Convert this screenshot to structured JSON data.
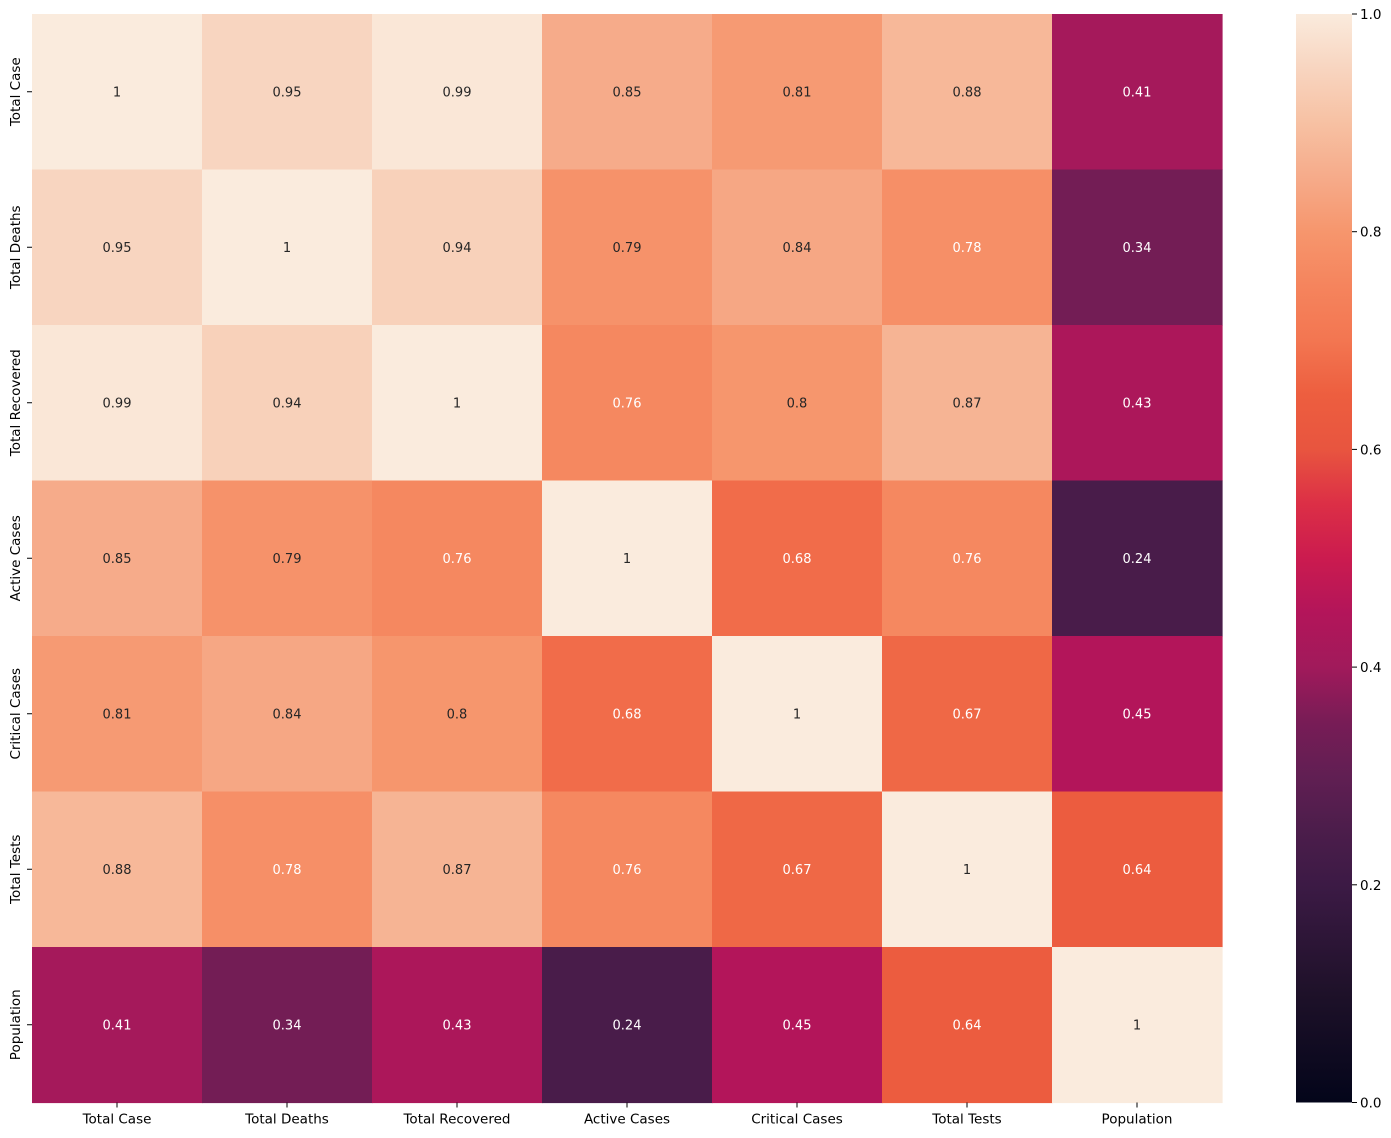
{
  "chart_data": {
    "type": "heatmap",
    "title": "",
    "xlabel": "",
    "ylabel": "",
    "x_categories": [
      "Total Case",
      "Total Deaths",
      "Total Recovered",
      "Active Cases",
      "Critical Cases",
      "Total Tests",
      "Population"
    ],
    "y_categories": [
      "Total Case",
      "Total Deaths",
      "Total Recovered",
      "Active Cases",
      "Critical Cases",
      "Total Tests",
      "Population"
    ],
    "values": [
      [
        1,
        0.95,
        0.99,
        0.85,
        0.81,
        0.88,
        0.41
      ],
      [
        0.95,
        1,
        0.94,
        0.79,
        0.84,
        0.78,
        0.34
      ],
      [
        0.99,
        0.94,
        1,
        0.76,
        0.8,
        0.87,
        0.43
      ],
      [
        0.85,
        0.79,
        0.76,
        1,
        0.68,
        0.76,
        0.24
      ],
      [
        0.81,
        0.84,
        0.8,
        0.68,
        1,
        0.67,
        0.45
      ],
      [
        0.88,
        0.78,
        0.87,
        0.76,
        0.67,
        1,
        0.64
      ],
      [
        0.41,
        0.34,
        0.43,
        0.24,
        0.45,
        0.64,
        1
      ]
    ],
    "annotations": true,
    "colormap": "rocket",
    "vmin": 0.0,
    "vmax": 1.0,
    "colorbar": {
      "ticks": [
        0.0,
        0.2,
        0.4,
        0.6,
        0.8,
        1.0
      ],
      "tick_labels": [
        "0.0",
        "0.2",
        "0.4",
        "0.6",
        "0.8",
        "1.0"
      ]
    },
    "grid": false,
    "legend": "colorbar-right"
  },
  "colors": {
    "rocket_stops": [
      [
        0.0,
        "#03051a"
      ],
      [
        0.1,
        "#1e1129"
      ],
      [
        0.2,
        "#3c1a45"
      ],
      [
        0.25,
        "#4c1d4b"
      ],
      [
        0.3,
        "#611f53"
      ],
      [
        0.35,
        "#781c56"
      ],
      [
        0.4,
        "#a11a5b"
      ],
      [
        0.45,
        "#b3155a"
      ],
      [
        0.5,
        "#cb1b4f"
      ],
      [
        0.55,
        "#dc2f46"
      ],
      [
        0.6,
        "#e8553f"
      ],
      [
        0.65,
        "#ed5e3f"
      ],
      [
        0.7,
        "#f37651"
      ],
      [
        0.75,
        "#f5845d"
      ],
      [
        0.8,
        "#f6966d"
      ],
      [
        0.85,
        "#f6ab8a"
      ],
      [
        0.9,
        "#f7c1a3"
      ],
      [
        0.95,
        "#f8d5c0"
      ],
      [
        1.0,
        "#faebdd"
      ]
    ],
    "text_dark": "#262626",
    "text_light": "#ffffff",
    "axis": "#000000"
  }
}
